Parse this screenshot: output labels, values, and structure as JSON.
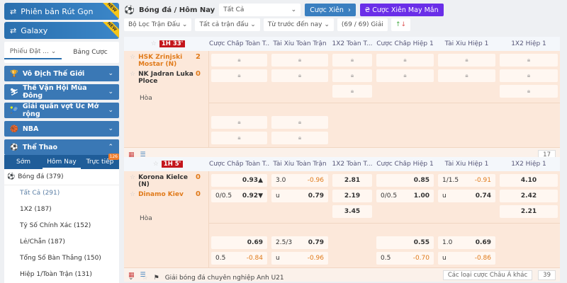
{
  "sidebar": {
    "promos": [
      {
        "label": "Phiên bản Rút Gọn",
        "badge": "NEW"
      },
      {
        "label": "Galaxy",
        "badge": "NEW"
      }
    ],
    "slip": {
      "tab1": "Phiếu Đặt ...",
      "tab2": "Bảng Cược"
    },
    "categories": [
      "Vô Địch Thế Giới",
      "Thế Vận Hội Mùa Đông",
      "Giải quần vợt Úc Mở rộng",
      "NBA"
    ],
    "sports": {
      "label": "Thể Thao",
      "tabs": [
        "Sớm",
        "Hôm Nay",
        "Trực tiếp"
      ],
      "live_count": "126"
    },
    "sport_header": "Bóng đá (379)",
    "items": [
      "Tất Cả (291)",
      "1X2 (187)",
      "Tỷ Số Chính Xác (152)",
      "Lẻ/Chẵn (187)",
      "Tổng Số Bàn Thắng (150)",
      "Hiệp 1/Toàn Trận (131)"
    ]
  },
  "header": {
    "title": "Bóng đá / Hôm Nay",
    "select": "Tất Cả",
    "parlay": "Cược Xiên",
    "lucky": "Cược Xiên May Mắn"
  },
  "filters": {
    "f1": "Bộ Lọc Trận Đấu",
    "f2": "Tất cả trận đấu",
    "f3": "Từ trước đến nay",
    "count": "(69 / 69) Giải"
  },
  "columns": [
    "Cược Chấp Toàn T...",
    "Tài Xỉu Toàn Trận",
    "1X2 Toàn T...",
    "Cược Chấp Hiệp 1",
    "Tài Xỉu Hiệp 1",
    "1X2 Hiệp 1"
  ],
  "matches": [
    {
      "time": "1H 33'",
      "home": "HSK Zrinjski Mostar (N)",
      "away": "NK Jadran Luka Ploce",
      "home_score": "2",
      "away_score": "0",
      "draw": "Hòa",
      "more_count": "17",
      "rows": [
        [
          "L",
          "L",
          "L",
          "L",
          "L",
          "L"
        ],
        [
          "L",
          "L",
          "L",
          "L",
          "L",
          "L"
        ],
        [
          "",
          "",
          "L",
          "",
          "",
          "L"
        ],
        "gap",
        [
          "L",
          "L",
          "",
          "",
          "",
          ""
        ],
        [
          "L",
          "L",
          "",
          "",
          "",
          ""
        ]
      ]
    },
    {
      "time": "1H 5'",
      "home": "Korona Kielce (N)",
      "away": "Dinamo Kiev",
      "home_score": "0",
      "away_score": "0",
      "draw": "Hòa",
      "more_count": "39",
      "other_bets": "Các loại cược Châu Á khác",
      "rows": [
        [
          [
            "",
            "0.93▲"
          ],
          [
            "3.0",
            "-0.96"
          ],
          [
            "",
            "2.81"
          ],
          [
            "",
            "0.85"
          ],
          [
            "1/1.5",
            "-0.91"
          ],
          [
            "",
            "4.10"
          ]
        ],
        [
          [
            "0/0.5",
            "0.92▼"
          ],
          [
            "u",
            "0.79"
          ],
          [
            "",
            "2.19"
          ],
          [
            "0/0.5",
            "1.00"
          ],
          [
            "u",
            "0.74"
          ],
          [
            "",
            "2.42"
          ]
        ],
        [
          "",
          "",
          [
            "",
            "3.45"
          ],
          "",
          "",
          [
            "",
            "2.21"
          ]
        ],
        "gap",
        [
          [
            "",
            "0.69"
          ],
          [
            "2.5/3",
            "0.79"
          ],
          "",
          [
            "",
            "0.55"
          ],
          [
            "1.0",
            "0.69"
          ],
          ""
        ],
        [
          [
            "0.5",
            "-0.84"
          ],
          [
            "u",
            "-0.96"
          ],
          "",
          [
            "0.5",
            "-0.70"
          ],
          [
            "u",
            "-0.86"
          ],
          ""
        ]
      ]
    }
  ],
  "league": "Giải bóng đá chuyên nghiệp Anh U21",
  "colors": {
    "accent": "#2a6fae",
    "live": "#c4161c",
    "lucky": "#6a2ee8",
    "odds_negative": "#e07a1a"
  }
}
